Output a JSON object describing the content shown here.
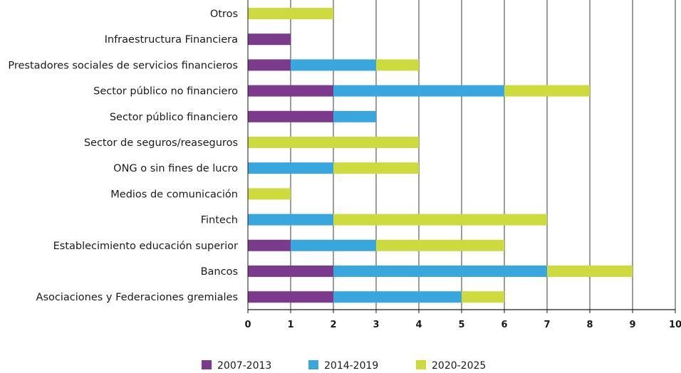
{
  "chart_data": {
    "type": "bar",
    "orientation": "horizontal",
    "stacked": true,
    "categories": [
      "Otros",
      "Infraestructura Financiera",
      "Prestadores sociales de servicios financieros",
      "Sector público no financiero",
      "Sector público financiero",
      "Sector de seguros/reaseguros",
      "ONG o sin fines de lucro",
      "Medios de comunicación",
      "Fintech",
      "Establecimiento educación superior",
      "Bancos",
      "Asociaciones y Federaciones gremiales"
    ],
    "series": [
      {
        "name": "2007-2013",
        "color": "#7b3a8c",
        "values": [
          0,
          1,
          1,
          2,
          2,
          0,
          0,
          0,
          0,
          1,
          2,
          2
        ]
      },
      {
        "name": "2014-2019",
        "color": "#3aa6de",
        "values": [
          0,
          0,
          2,
          4,
          1,
          0,
          2,
          0,
          2,
          2,
          5,
          3
        ]
      },
      {
        "name": "2020-2025",
        "color": "#cddb3f",
        "values": [
          2,
          0,
          1,
          2,
          0,
          4,
          2,
          1,
          5,
          3,
          2,
          1
        ]
      }
    ],
    "xlim": [
      0,
      10
    ],
    "xticks": [
      "0",
      "1",
      "2",
      "3",
      "4",
      "5",
      "6",
      "7",
      "8",
      "9",
      "10"
    ],
    "grid": true,
    "legend_position": "bottom",
    "title": "",
    "xlabel": "",
    "ylabel": ""
  }
}
